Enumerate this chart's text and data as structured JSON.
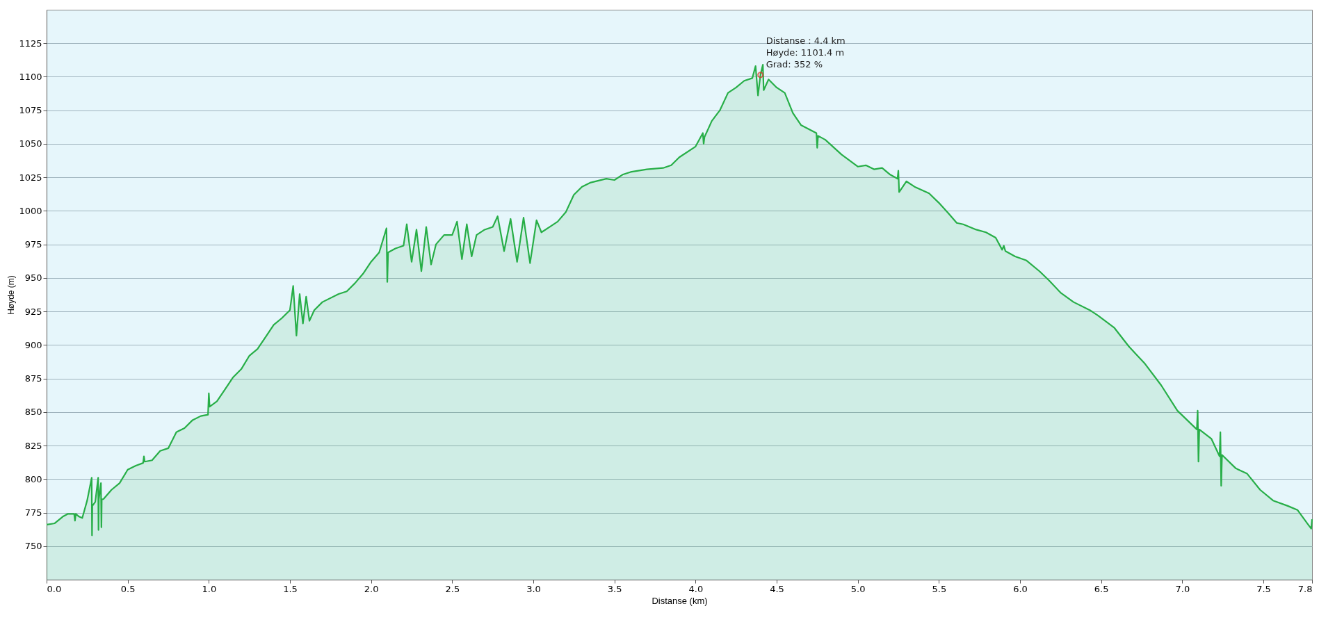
{
  "chart_data": {
    "type": "area",
    "xlabel": "Distanse (km)",
    "ylabel": "Høyde (m)",
    "x": [
      0,
      0.05,
      0.1,
      0.13,
      0.17,
      0.175,
      0.18,
      0.2,
      0.22,
      0.25,
      0.278,
      0.28,
      0.282,
      0.3,
      0.318,
      0.32,
      0.322,
      0.335,
      0.338,
      0.34,
      0.35,
      0.4,
      0.45,
      0.5,
      0.55,
      0.595,
      0.6,
      0.605,
      0.65,
      0.7,
      0.75,
      0.8,
      0.85,
      0.9,
      0.95,
      0.995,
      1.0,
      1.005,
      1.05,
      1.1,
      1.15,
      1.2,
      1.25,
      1.3,
      1.35,
      1.4,
      1.45,
      1.5,
      1.52,
      1.54,
      1.56,
      1.58,
      1.6,
      1.62,
      1.65,
      1.7,
      1.8,
      1.85,
      1.9,
      1.95,
      2.0,
      2.05,
      2.095,
      2.1,
      2.105,
      2.15,
      2.2,
      2.22,
      2.25,
      2.28,
      2.31,
      2.34,
      2.37,
      2.4,
      2.45,
      2.5,
      2.53,
      2.56,
      2.59,
      2.62,
      2.65,
      2.7,
      2.75,
      2.78,
      2.82,
      2.86,
      2.9,
      2.94,
      2.98,
      3.02,
      3.05,
      3.1,
      3.15,
      3.2,
      3.25,
      3.3,
      3.35,
      3.45,
      3.5,
      3.55,
      3.6,
      3.7,
      3.8,
      3.85,
      3.9,
      4.0,
      4.045,
      4.05,
      4.055,
      4.1,
      4.15,
      4.2,
      4.25,
      4.3,
      4.35,
      4.37,
      4.385,
      4.4,
      4.415,
      4.42,
      4.45,
      4.5,
      4.55,
      4.6,
      4.65,
      4.745,
      4.75,
      4.755,
      4.8,
      4.9,
      5.0,
      5.05,
      5.1,
      5.15,
      5.2,
      5.245,
      5.25,
      5.255,
      5.3,
      5.35,
      5.44,
      5.5,
      5.56,
      5.61,
      5.65,
      5.73,
      5.79,
      5.85,
      5.89,
      5.9,
      5.91,
      5.97,
      6.04,
      6.12,
      6.18,
      6.25,
      6.33,
      6.43,
      6.48,
      6.58,
      6.67,
      6.77,
      6.87,
      6.97,
      7.09,
      7.095,
      7.1,
      7.105,
      7.18,
      7.23,
      7.235,
      7.24,
      7.245,
      7.33,
      7.4,
      7.48,
      7.56,
      7.65,
      7.71,
      7.77,
      7.795,
      7.8
    ],
    "series": [
      {
        "color": "#27ae47",
        "values": [
          766,
          767,
          772,
          774,
          774,
          769,
          774,
          772,
          771,
          784,
          801,
          758,
          780,
          783,
          801,
          762,
          785,
          797,
          764,
          785,
          785,
          792,
          797,
          807,
          810,
          812,
          817,
          813,
          814,
          821,
          823,
          835,
          838,
          844,
          847,
          848,
          864,
          854,
          858,
          867,
          876,
          882,
          892,
          897,
          906,
          915,
          920,
          926,
          944,
          907,
          938,
          916,
          936,
          918,
          926,
          932,
          938,
          940,
          946,
          953,
          962,
          969,
          987,
          947,
          969,
          972,
          974,
          990,
          962,
          986,
          955,
          988,
          960,
          975,
          982,
          982,
          992,
          964,
          990,
          966,
          982,
          986,
          988,
          996,
          970,
          994,
          962,
          995,
          961,
          993,
          984,
          988,
          992,
          999,
          1012,
          1018,
          1021,
          1024,
          1023,
          1027,
          1029,
          1031,
          1032,
          1034,
          1040,
          1048,
          1058,
          1050,
          1055,
          1067,
          1075,
          1088,
          1092,
          1097,
          1099,
          1108,
          1086,
          1101.4,
          1109,
          1090,
          1098,
          1092,
          1088,
          1073,
          1064,
          1058,
          1047,
          1056,
          1053,
          1042,
          1033,
          1034,
          1031,
          1032,
          1027,
          1024,
          1030,
          1014,
          1022,
          1018,
          1013,
          1006,
          998,
          991,
          990,
          986,
          984,
          980,
          971,
          974,
          970,
          966,
          963,
          955,
          948,
          939,
          932,
          926,
          922,
          913,
          899,
          886,
          870,
          851,
          837,
          851,
          813,
          837,
          830,
          817,
          835,
          795,
          818,
          808,
          804,
          792,
          784,
          780,
          777,
          767,
          763,
          770
        ]
      }
    ],
    "xlim": [
      0,
      7.8
    ],
    "xticks": [
      {
        "value": 0,
        "label": "0.0"
      },
      0.5,
      {
        "value": 1,
        "label": "1.0"
      },
      1.5,
      {
        "value": 2,
        "label": "2.0"
      },
      2.5,
      {
        "value": 3,
        "label": "3.0"
      },
      3.5,
      {
        "value": 4,
        "label": "4.0"
      },
      4.5,
      {
        "value": 5,
        "label": "5.0"
      },
      5.5,
      {
        "value": 6,
        "label": "6.0"
      },
      6.5,
      {
        "value": 7,
        "label": "7.0"
      },
      7.5,
      7.8
    ],
    "ylim": [
      725,
      1150
    ],
    "yticks": [
      750,
      775,
      800,
      825,
      850,
      875,
      900,
      925,
      950,
      975,
      1000,
      1025,
      1050,
      1075,
      1100,
      1125
    ],
    "grid": "y",
    "annotations": [
      {
        "text": "Distanse  : 4.4 km\nHøyde: 1101.4 m\nGrad: 352 %",
        "x": 4.4,
        "y": 1101.4
      }
    ]
  }
}
